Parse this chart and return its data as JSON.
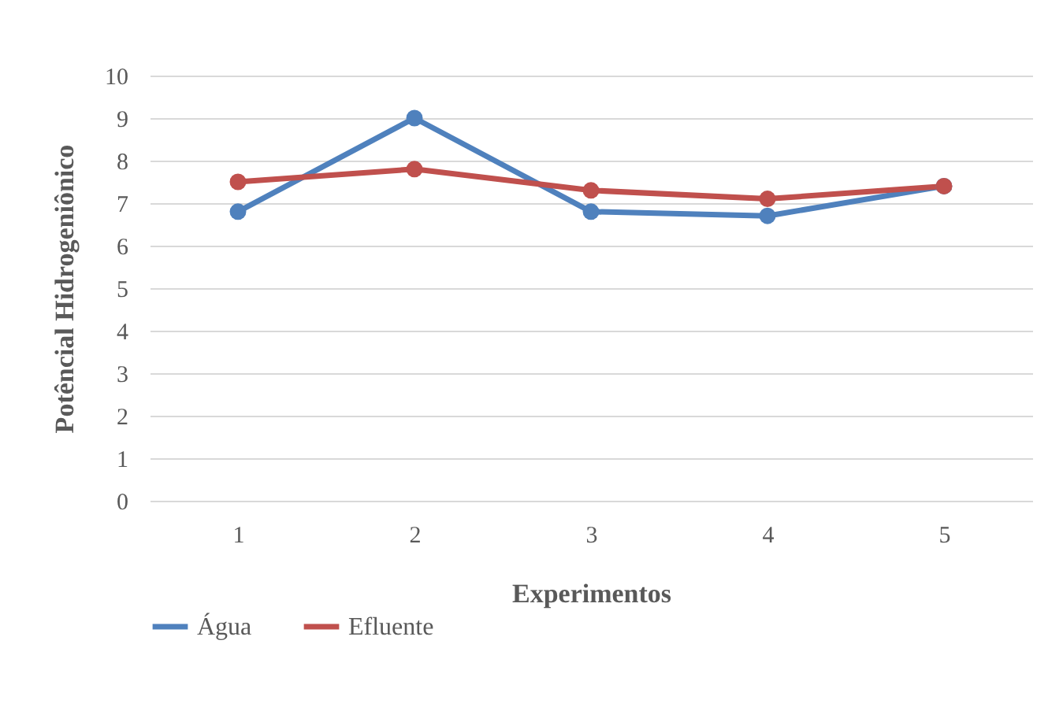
{
  "chart_data": {
    "type": "line",
    "xlabel": "Experimentos",
    "ylabel": "Potêncial Hidrogeniônico",
    "categories": [
      "1",
      "2",
      "3",
      "4",
      "5"
    ],
    "series": [
      {
        "name": "Água",
        "color": "#4f81bd",
        "values": [
          6.8,
          9.0,
          6.8,
          6.7,
          7.4
        ]
      },
      {
        "name": "Efluente",
        "color": "#c0504d",
        "values": [
          7.5,
          7.8,
          7.3,
          7.1,
          7.4
        ]
      }
    ],
    "ylim": [
      0,
      10
    ],
    "yticks": [
      0,
      1,
      2,
      3,
      4,
      5,
      6,
      7,
      8,
      9,
      10
    ],
    "grid": "y",
    "legend": "bottom",
    "marker": "circle",
    "line_style": "solid"
  }
}
